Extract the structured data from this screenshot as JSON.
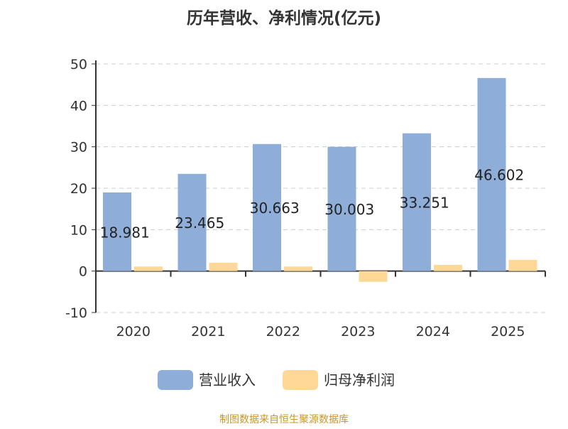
{
  "chart_data": {
    "type": "bar",
    "title": "历年营收、净利情况(亿元)",
    "categories": [
      "2020",
      "2021",
      "2022",
      "2023",
      "2024",
      "2025"
    ],
    "series": [
      {
        "name": "营业收入",
        "values": [
          18.981,
          23.465,
          30.663,
          30.003,
          33.251,
          46.602
        ],
        "color": "#8eadd9",
        "labels": [
          "18.981",
          "23.465",
          "30.663",
          "30.003",
          "33.251",
          "46.602"
        ]
      },
      {
        "name": "归母净利润",
        "values": [
          1.1,
          2.0,
          1.1,
          -2.6,
          1.5,
          2.7
        ],
        "color": "#ffd898"
      }
    ],
    "ylim": [
      -10,
      50
    ],
    "yticks": [
      "-10",
      "0",
      "10",
      "20",
      "30",
      "40",
      "50"
    ],
    "grid": true,
    "legend": "bottom"
  },
  "source": "制图数据来自恒生聚源数据库"
}
